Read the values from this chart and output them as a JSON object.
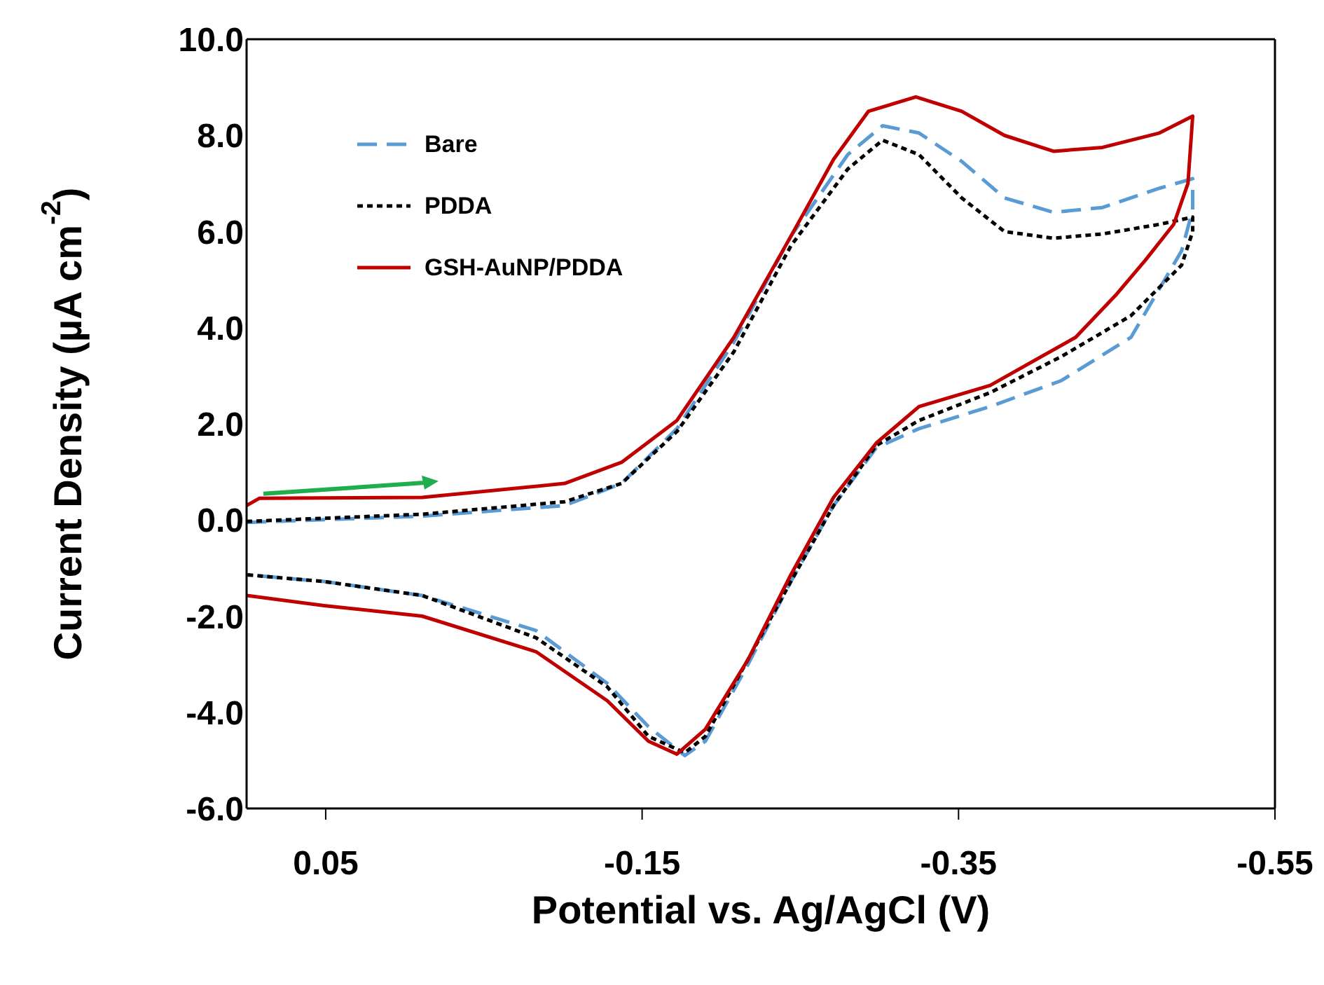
{
  "chart_data": {
    "type": "line",
    "xlabel": "Potential vs. Ag/AgCl (V)",
    "ylabel": "Current Density (µA cm$^{-2}$)",
    "xlim": [
      0.1,
      -0.55
    ],
    "xticks": [
      0.05,
      -0.15,
      -0.35,
      -0.55
    ],
    "ylim": [
      -6,
      10
    ],
    "yticks": [
      {
        "value": -6,
        "label": "-6.0"
      },
      {
        "value": -4,
        "label": "-4.0"
      },
      {
        "value": -2,
        "label": "-2.0"
      },
      {
        "value": 0,
        "label": "0.0"
      },
      {
        "value": 2,
        "label": "2.0"
      },
      {
        "value": 4,
        "label": "4.0"
      },
      {
        "value": 6,
        "label": "6.0"
      },
      {
        "value": 8,
        "label": "8.0"
      },
      {
        "value": 10,
        "label": "10.0"
      }
    ],
    "grid": false,
    "legend": "top left",
    "marker": "none",
    "series": [
      {
        "name": "Bare",
        "color": "#5b9bd5",
        "line_style": "dashed",
        "x": [
          0.1,
          -0.011,
          -0.101,
          -0.137,
          -0.172,
          -0.208,
          -0.244,
          -0.28,
          -0.302,
          -0.325,
          -0.352,
          -0.379,
          -0.41,
          -0.441,
          -0.477,
          -0.498,
          -0.498,
          -0.491,
          -0.459,
          -0.415,
          -0.37,
          -0.325,
          -0.298,
          -0.271,
          -0.244,
          -0.217,
          -0.19,
          -0.177,
          -0.154,
          -0.128,
          -0.083,
          -0.011,
          0.051,
          0.1
        ],
        "values": [
          -0.05,
          0.08,
          0.3,
          0.76,
          1.9,
          3.7,
          5.9,
          7.6,
          8.2,
          8.05,
          7.46,
          6.7,
          6.4,
          6.5,
          6.9,
          7.1,
          6.45,
          5.6,
          3.8,
          2.9,
          2.36,
          1.9,
          1.5,
          0.3,
          -1.28,
          -3.0,
          -4.6,
          -4.9,
          -4.3,
          -3.4,
          -2.3,
          -1.57,
          -1.28,
          -1.14
        ]
      },
      {
        "name": "PDDA",
        "color": "#000000",
        "line_style": "dotted",
        "x": [
          0.1,
          -0.011,
          -0.101,
          -0.137,
          -0.172,
          -0.208,
          -0.244,
          -0.28,
          -0.302,
          -0.325,
          -0.352,
          -0.379,
          -0.41,
          -0.441,
          -0.477,
          -0.498,
          -0.498,
          -0.491,
          -0.459,
          -0.415,
          -0.37,
          -0.325,
          -0.298,
          -0.271,
          -0.244,
          -0.217,
          -0.19,
          -0.177,
          -0.154,
          -0.128,
          -0.083,
          -0.011,
          0.051,
          0.1
        ],
        "values": [
          -0.03,
          0.12,
          0.38,
          0.76,
          1.84,
          3.5,
          5.7,
          7.3,
          7.9,
          7.6,
          6.7,
          6.0,
          5.86,
          5.95,
          6.15,
          6.3,
          6.0,
          5.3,
          4.25,
          3.4,
          2.65,
          2.07,
          1.55,
          0.3,
          -1.28,
          -2.9,
          -4.5,
          -4.84,
          -4.5,
          -3.47,
          -2.45,
          -1.57,
          -1.28,
          -1.14
        ]
      },
      {
        "name": "GSH-AuNP/PDDA",
        "color": "#c00000",
        "line_style": "solid",
        "x": [
          0.1,
          0.092,
          -0.011,
          -0.101,
          -0.137,
          -0.172,
          -0.208,
          -0.244,
          -0.271,
          -0.293,
          -0.323,
          -0.352,
          -0.379,
          -0.41,
          -0.441,
          -0.477,
          -0.498,
          -0.495,
          -0.486,
          -0.468,
          -0.45,
          -0.424,
          -0.37,
          -0.325,
          -0.298,
          -0.271,
          -0.244,
          -0.217,
          -0.19,
          -0.172,
          -0.154,
          -0.128,
          -0.083,
          -0.011,
          0.051,
          0.1
        ],
        "values": [
          0.3,
          0.45,
          0.47,
          0.76,
          1.2,
          2.07,
          3.8,
          5.9,
          7.5,
          8.5,
          8.8,
          8.5,
          8.0,
          7.67,
          7.75,
          8.05,
          8.4,
          7.0,
          6.15,
          5.4,
          4.7,
          3.8,
          2.8,
          2.36,
          1.6,
          0.47,
          -1.14,
          -2.9,
          -4.35,
          -4.87,
          -4.6,
          -3.76,
          -2.74,
          -2.0,
          -1.78,
          -1.57
        ]
      }
    ]
  }
}
